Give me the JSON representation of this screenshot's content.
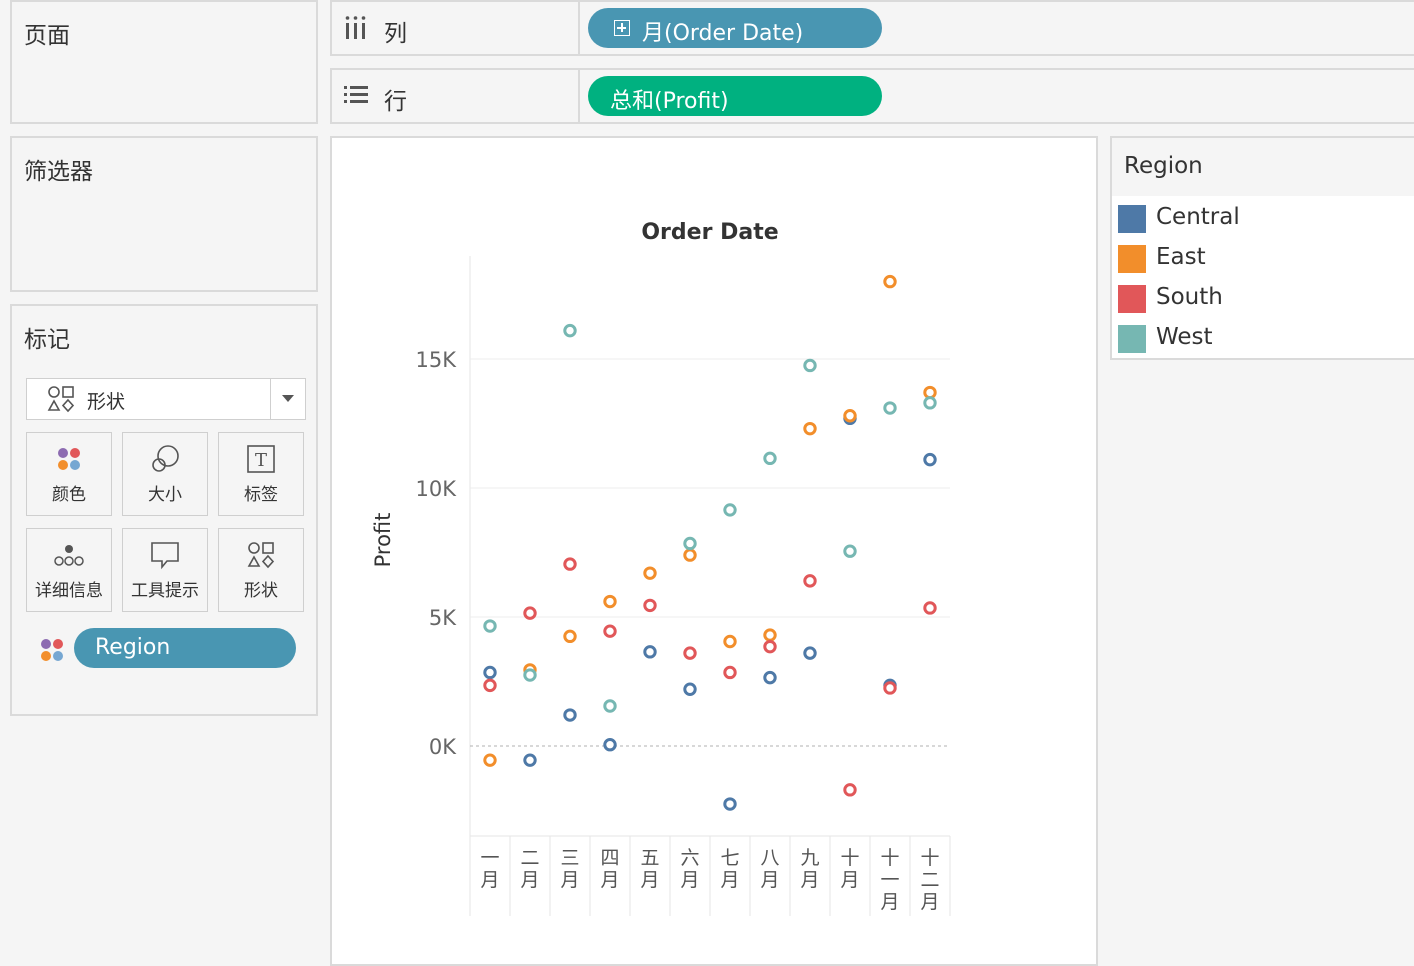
{
  "cards": {
    "pages_title": "页面",
    "filters_title": "筛选器",
    "marks_title": "标记"
  },
  "shelves": {
    "columns": {
      "label": "列",
      "pill": "月(Order Date)"
    },
    "rows": {
      "label": "行",
      "pill": "总和(Profit)"
    }
  },
  "marks": {
    "type_label": "形状",
    "buttons": [
      "颜色",
      "大小",
      "标签",
      "详细信息",
      "工具提示",
      "形状"
    ],
    "color_pill": "Region"
  },
  "legend": {
    "title": "Region",
    "items": [
      {
        "label": "Central",
        "color": "#4e79a7"
      },
      {
        "label": "East",
        "color": "#f28e2b"
      },
      {
        "label": "South",
        "color": "#e15759"
      },
      {
        "label": "West",
        "color": "#76b7b2"
      }
    ]
  },
  "chart_data": {
    "type": "scatter",
    "title": "Order Date",
    "ylabel": "Profit",
    "categories": [
      "一月",
      "二月",
      "三月",
      "四月",
      "五月",
      "六月",
      "七月",
      "八月",
      "九月",
      "十月",
      "十一月",
      "十二月"
    ],
    "yticks": [
      0,
      5000,
      10000,
      15000
    ],
    "ytick_labels": [
      "0K",
      "5K",
      "10K",
      "15K"
    ],
    "ylim": [
      -3500,
      19000
    ],
    "series": [
      {
        "name": "Central",
        "color": "#4e79a7",
        "values": [
          2850,
          -550,
          1200,
          50,
          3650,
          2200,
          -2250,
          2650,
          3600,
          12700,
          2350,
          11100
        ]
      },
      {
        "name": "East",
        "color": "#f28e2b",
        "values": [
          -550,
          2950,
          4250,
          5600,
          6700,
          7400,
          4050,
          4300,
          12300,
          12800,
          18000,
          13700
        ]
      },
      {
        "name": "South",
        "color": "#e15759",
        "values": [
          2350,
          5150,
          7050,
          4450,
          5450,
          3600,
          2850,
          3850,
          6400,
          -1700,
          2250,
          5350
        ]
      },
      {
        "name": "West",
        "color": "#76b7b2",
        "values": [
          4650,
          2750,
          16100,
          1550,
          null,
          7850,
          9150,
          11150,
          14750,
          7550,
          13100,
          13300
        ]
      }
    ]
  }
}
